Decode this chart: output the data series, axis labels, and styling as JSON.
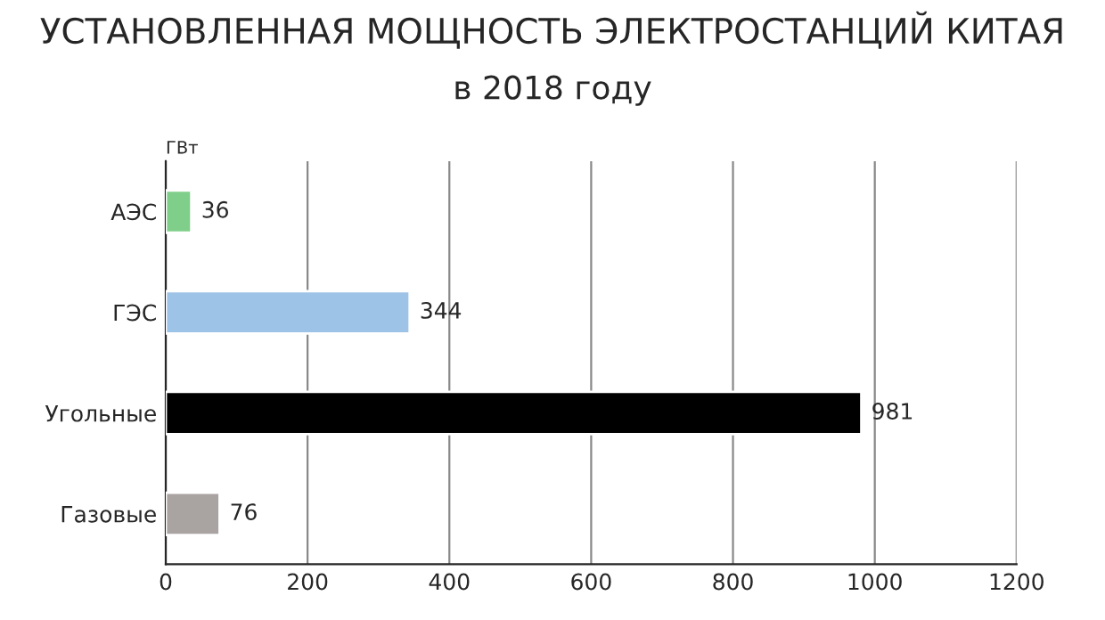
{
  "chart_data": {
    "type": "bar",
    "orientation": "horizontal",
    "title": "УСТАНОВЛЕННАЯ МОЩНОСТЬ ЭЛЕКТРОСТАНЦИЙ КИТАЯ",
    "subtitle": "в 2018 году",
    "categories": [
      "АЭС",
      "ГЭС",
      "Угольные",
      "Газовые"
    ],
    "values": [
      36,
      344,
      981,
      76
    ],
    "colors": [
      "#7fcf8a",
      "#9dc3e6",
      "#000000",
      "#a9a3a2"
    ],
    "xlim": [
      0,
      1200
    ],
    "xticks": [
      0,
      200,
      400,
      600,
      800,
      1000,
      1200
    ],
    "grid": "x",
    "data_labels": true,
    "legend": false,
    "annotations": [
      "ГВт"
    ]
  }
}
